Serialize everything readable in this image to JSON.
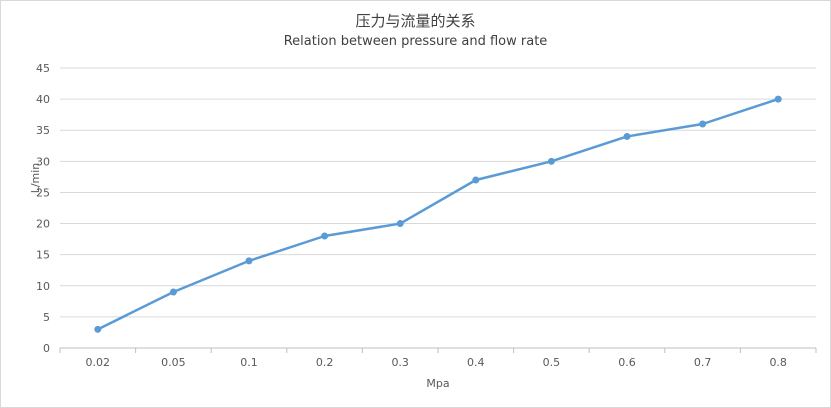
{
  "chart_data": {
    "type": "line",
    "title": "压力与流量的关系",
    "subtitle": "Relation between pressure and flow rate",
    "xlabel": "Mpa",
    "ylabel": "L/min",
    "categories": [
      "0.02",
      "0.05",
      "0.1",
      "0.2",
      "0.3",
      "0.4",
      "0.5",
      "0.6",
      "0.7",
      "0.8"
    ],
    "series": [
      {
        "values": [
          3,
          9,
          14,
          18,
          20,
          27,
          30,
          34,
          36,
          40
        ],
        "color": "#5b9bd5"
      }
    ],
    "ylim": [
      0,
      45
    ],
    "yticks": [
      0,
      5,
      10,
      15,
      20,
      25,
      30,
      35,
      40,
      45
    ],
    "grid": true,
    "legend": "none"
  }
}
